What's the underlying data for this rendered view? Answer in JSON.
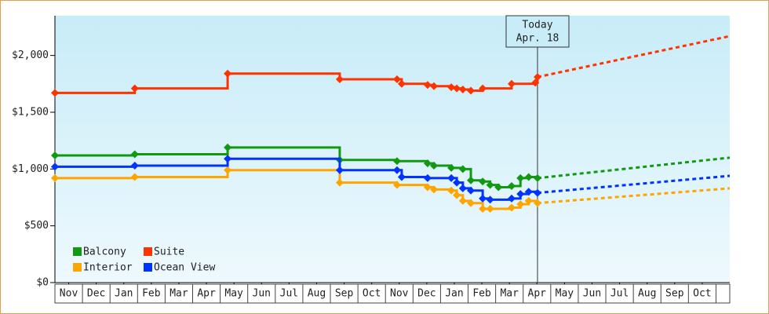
{
  "chart_data": {
    "type": "line",
    "xlim": [
      0,
      24.5
    ],
    "xticks": [
      {
        "value": 0.5,
        "label": "Nov"
      },
      {
        "value": 1.5,
        "label": "Dec"
      },
      {
        "value": 2.5,
        "label": "Jan"
      },
      {
        "value": 3.5,
        "label": "Feb"
      },
      {
        "value": 4.5,
        "label": "Mar"
      },
      {
        "value": 5.5,
        "label": "Apr"
      },
      {
        "value": 6.5,
        "label": "May"
      },
      {
        "value": 7.5,
        "label": "Jun"
      },
      {
        "value": 8.5,
        "label": "Jul"
      },
      {
        "value": 9.5,
        "label": "Aug"
      },
      {
        "value": 10.5,
        "label": "Sep"
      },
      {
        "value": 11.5,
        "label": "Oct"
      },
      {
        "value": 12.5,
        "label": "Nov"
      },
      {
        "value": 13.5,
        "label": "Dec"
      },
      {
        "value": 14.5,
        "label": "Jan"
      },
      {
        "value": 15.5,
        "label": "Feb"
      },
      {
        "value": 16.5,
        "label": "Mar"
      },
      {
        "value": 17.5,
        "label": "Apr"
      },
      {
        "value": 18.5,
        "label": "May"
      },
      {
        "value": 19.5,
        "label": "Jun"
      },
      {
        "value": 20.5,
        "label": "Jul"
      },
      {
        "value": 21.5,
        "label": "Aug"
      },
      {
        "value": 22.5,
        "label": "Sep"
      },
      {
        "value": 23.5,
        "label": "Oct"
      }
    ],
    "ylim": [
      0,
      2350
    ],
    "yticks": [
      {
        "value": 0,
        "label": "$0"
      },
      {
        "value": 500,
        "label": "$500"
      },
      {
        "value": 1000,
        "label": "$1,000"
      },
      {
        "value": 1500,
        "label": "$1,500"
      },
      {
        "value": 2000,
        "label": "$2,000"
      }
    ],
    "annotation": {
      "lines": [
        "Today",
        "Apr. 18"
      ],
      "x": 17.52
    },
    "legend": "lower left",
    "series": [
      {
        "name": "Balcony",
        "color": "#119911",
        "x": [
          0,
          2.9,
          6.27,
          10.34,
          12.42,
          13.53,
          13.76,
          14.39,
          14.81,
          15.1,
          15.53,
          15.8,
          16.1,
          16.58,
          16.9,
          17.2,
          17.52
        ],
        "values": [
          1120,
          1130,
          1190,
          1080,
          1070,
          1050,
          1030,
          1010,
          1000,
          900,
          890,
          860,
          840,
          850,
          920,
          930,
          920
        ],
        "forecast": {
          "x": [
            17.52,
            24.5
          ],
          "values": [
            920,
            1100
          ]
        }
      },
      {
        "name": "Suite",
        "color": "#ff3300",
        "x": [
          0,
          2.9,
          6.27,
          10.34,
          12.42,
          12.59,
          13.53,
          13.76,
          14.39,
          14.59,
          14.81,
          15.1,
          15.53,
          16.58,
          17.44,
          17.52
        ],
        "values": [
          1670,
          1710,
          1840,
          1790,
          1790,
          1750,
          1740,
          1730,
          1720,
          1710,
          1700,
          1690,
          1710,
          1750,
          1760,
          1810
        ],
        "forecast": {
          "x": [
            17.52,
            24.5
          ],
          "values": [
            1810,
            2170
          ]
        }
      },
      {
        "name": "Interior",
        "color": "#ffa500",
        "x": [
          0,
          2.9,
          6.27,
          10.34,
          12.42,
          13.53,
          13.76,
          14.39,
          14.59,
          14.81,
          15.1,
          15.53,
          15.8,
          16.58,
          16.9,
          17.2,
          17.52
        ],
        "values": [
          920,
          930,
          990,
          880,
          860,
          840,
          820,
          810,
          770,
          720,
          700,
          650,
          650,
          660,
          690,
          720,
          700
        ],
        "forecast": {
          "x": [
            17.52,
            24.5
          ],
          "values": [
            700,
            830
          ]
        }
      },
      {
        "name": "Ocean View",
        "color": "#0033ff",
        "x": [
          0,
          2.9,
          6.27,
          10.34,
          12.42,
          12.59,
          13.53,
          14.39,
          14.59,
          14.81,
          15.1,
          15.53,
          15.8,
          16.58,
          16.9,
          17.2,
          17.52
        ],
        "values": [
          1020,
          1030,
          1090,
          990,
          990,
          930,
          920,
          920,
          880,
          830,
          810,
          740,
          730,
          740,
          780,
          800,
          790
        ],
        "forecast": {
          "x": [
            17.52,
            24.5
          ],
          "values": [
            790,
            940
          ]
        }
      }
    ]
  }
}
